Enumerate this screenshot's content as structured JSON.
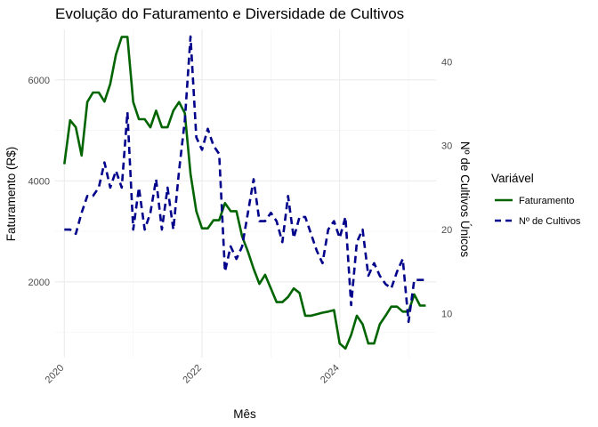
{
  "chart_data": {
    "type": "line",
    "title": "Evolução do Faturamento e Diversidade de Cultivos",
    "xlabel": "Mês",
    "ylabel": "Faturamento (R$)",
    "y2label": "Nº de Cultivos Únicos",
    "x_ticks": [
      "2020",
      "2022",
      "2024"
    ],
    "y_ticks": [
      2000,
      4000,
      6000
    ],
    "y2_ticks": [
      10,
      20,
      30,
      40
    ],
    "grid": true,
    "legend": {
      "title": "Variável",
      "position": "right",
      "entries": [
        {
          "label": "Faturamento",
          "color": "#006400",
          "dash": "solid"
        },
        {
          "label": "Nº de Cultivos",
          "color": "#00008B",
          "dash": "dashed"
        }
      ]
    },
    "ylim": [
      500,
      7000
    ],
    "y2lim": [
      4.75,
      43.85
    ],
    "series": [
      {
        "name": "Faturamento",
        "axis": "left",
        "color": "#006400",
        "x": [
          "2020-01",
          "2020-02",
          "2020-03",
          "2020-04",
          "2020-05",
          "2020-06",
          "2020-07",
          "2020-08",
          "2020-09",
          "2020-10",
          "2020-11",
          "2020-12",
          "2021-01",
          "2021-02",
          "2021-03",
          "2021-04",
          "2021-05",
          "2021-06",
          "2021-07",
          "2021-08",
          "2021-09",
          "2021-10",
          "2021-11",
          "2021-12",
          "2022-01",
          "2022-02",
          "2022-03",
          "2022-04",
          "2022-05",
          "2022-06",
          "2022-07",
          "2022-08",
          "2022-09",
          "2022-10",
          "2022-11",
          "2022-12",
          "2023-01",
          "2023-02",
          "2023-03",
          "2023-04",
          "2023-05",
          "2023-06",
          "2023-07",
          "2023-08",
          "2023-09",
          "2023-10",
          "2023-11",
          "2023-12",
          "2024-01",
          "2024-02",
          "2024-03",
          "2024-04",
          "2024-05",
          "2024-06",
          "2024-07",
          "2024-08",
          "2024-09",
          "2024-10",
          "2024-11",
          "2024-12",
          "2025-01",
          "2025-02",
          "2025-03",
          "2025-04"
        ],
        "values": [
          4330,
          5200,
          5060,
          4500,
          5560,
          5750,
          5750,
          5570,
          5920,
          6500,
          6850,
          6850,
          5560,
          5220,
          5220,
          5060,
          5390,
          5060,
          5060,
          5390,
          5560,
          5340,
          4140,
          3400,
          3060,
          3060,
          3220,
          3220,
          3560,
          3400,
          3400,
          2900,
          2600,
          2260,
          1960,
          2140,
          1870,
          1600,
          1600,
          1700,
          1870,
          1780,
          1330,
          1330,
          1360,
          1390,
          1410,
          1440,
          780,
          680,
          950,
          1330,
          1160,
          780,
          780,
          1160,
          1330,
          1510,
          1510,
          1410,
          1410,
          1750,
          1530,
          1530
        ]
      },
      {
        "name": "Nº de Cultivos",
        "axis": "right",
        "color": "#00008B",
        "x": [
          "2020-01",
          "2020-02",
          "2020-03",
          "2020-04",
          "2020-05",
          "2020-06",
          "2020-07",
          "2020-08",
          "2020-09",
          "2020-10",
          "2020-11",
          "2020-12",
          "2021-01",
          "2021-02",
          "2021-03",
          "2021-04",
          "2021-05",
          "2021-06",
          "2021-07",
          "2021-08",
          "2021-09",
          "2021-10",
          "2021-11",
          "2021-12",
          "2022-01",
          "2022-02",
          "2022-03",
          "2022-04",
          "2022-05",
          "2022-06",
          "2022-07",
          "2022-08",
          "2022-09",
          "2022-10",
          "2022-11",
          "2022-12",
          "2023-01",
          "2023-02",
          "2023-03",
          "2023-04",
          "2023-05",
          "2023-06",
          "2023-07",
          "2023-08",
          "2023-09",
          "2023-10",
          "2023-11",
          "2023-12",
          "2024-01",
          "2024-02",
          "2024-03",
          "2024-04",
          "2024-05",
          "2024-06",
          "2024-07",
          "2024-08",
          "2024-09",
          "2024-10",
          "2024-11",
          "2024-12",
          "2025-01",
          "2025-02",
          "2025-03",
          "2025-04"
        ],
        "values": [
          20,
          20,
          19.5,
          22,
          24,
          24,
          25,
          28,
          25,
          27,
          25,
          34,
          20,
          25,
          20,
          22,
          26,
          20,
          25,
          20,
          27,
          33,
          43,
          31,
          29.5,
          32,
          30,
          29,
          15,
          18,
          16.5,
          18,
          22,
          26,
          21,
          21,
          22,
          21,
          18.5,
          24,
          19,
          21.5,
          21.5,
          19.5,
          17.5,
          16,
          20,
          21,
          19,
          21.5,
          11,
          18.5,
          20,
          14.5,
          16,
          14.5,
          13.5,
          13,
          15,
          16.5,
          9,
          14,
          14,
          14
        ]
      }
    ]
  }
}
